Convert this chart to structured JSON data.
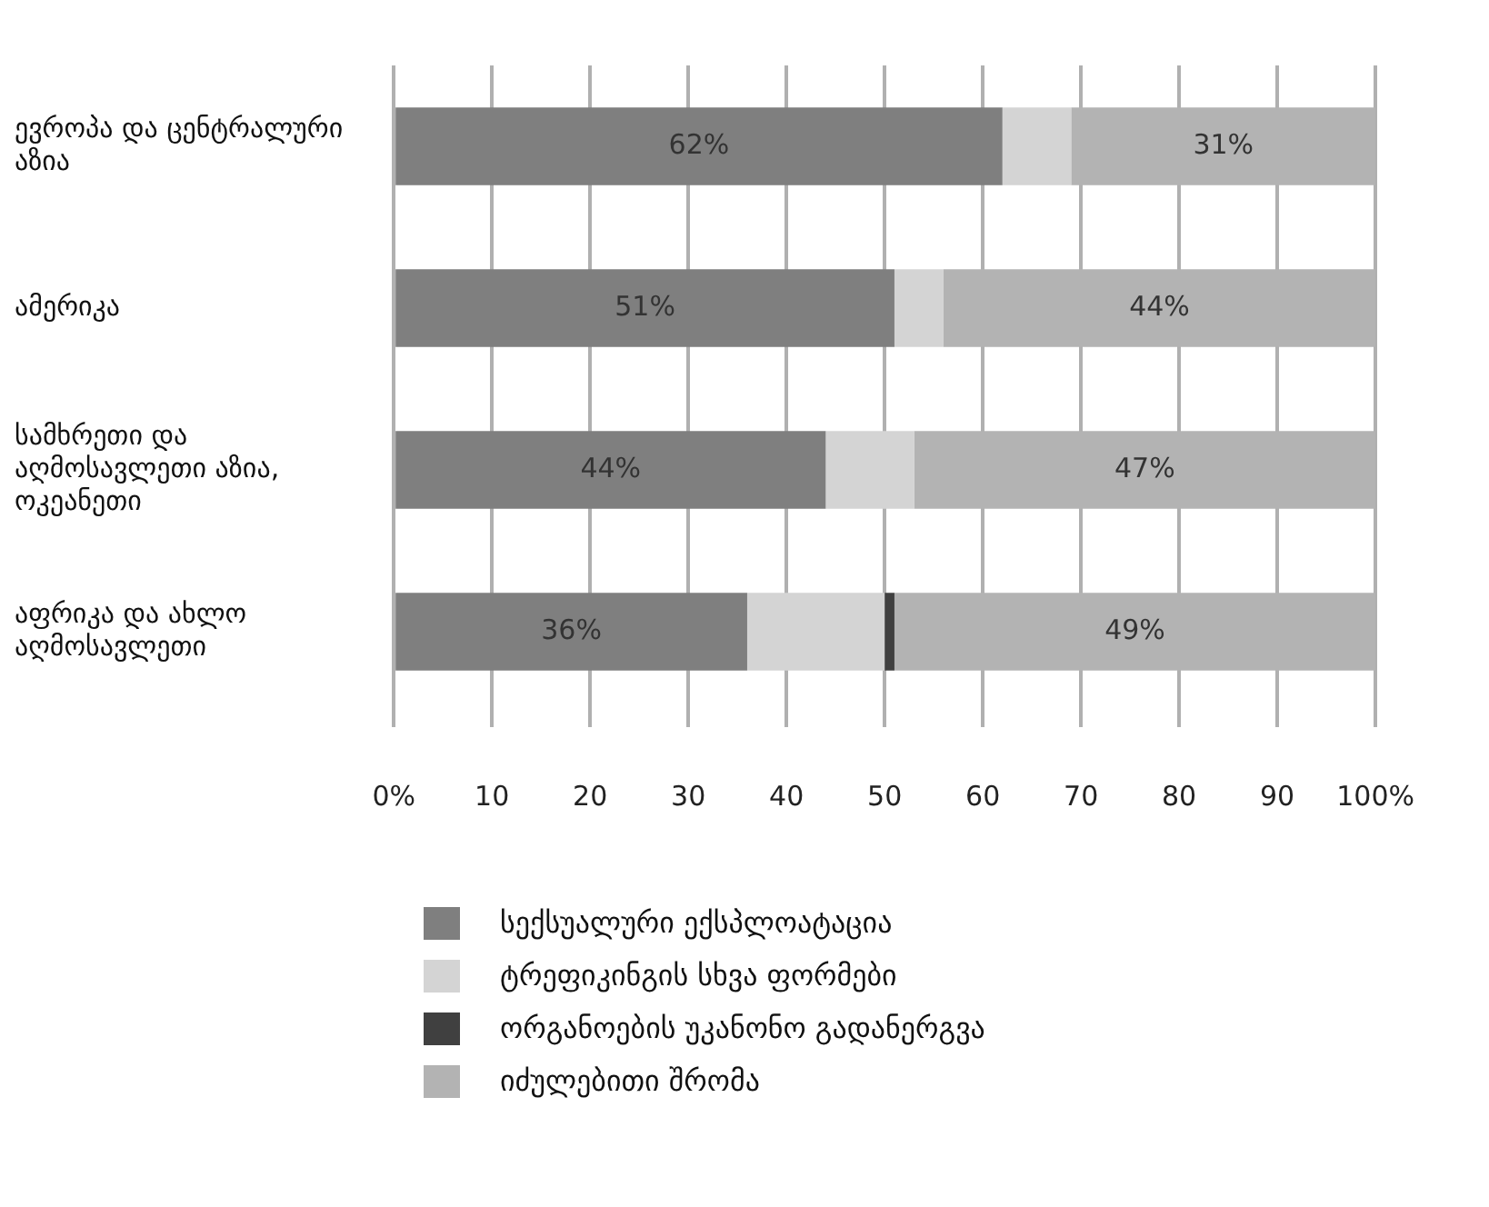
{
  "chart_data": {
    "type": "bar",
    "orientation": "horizontal",
    "stacked": true,
    "categories": [
      "ევროპა და ცენტრალური აზია",
      "ამერიკა",
      "სამხრეთი და აღმოსავლეთი აზია, ოკეანეთი",
      "აფრიკა და ახლო აღმოსავლეთი"
    ],
    "series": [
      {
        "name": "სექსუალური ექსპლოატაცია",
        "color": "#7f7f7f",
        "values": [
          62,
          51,
          44,
          36
        ],
        "value_labels": [
          "62%",
          "51%",
          "44%",
          "36%"
        ]
      },
      {
        "name": "ტრეფიკინგის სხვა ფორმები",
        "color": "#d4d4d4",
        "values": [
          7,
          5,
          9,
          14
        ]
      },
      {
        "name": "ორგანოების უკანონო გადანერგვა",
        "color": "#404040",
        "values": [
          0,
          0,
          0,
          1
        ]
      },
      {
        "name": "იძულებითი შრომა",
        "color": "#b3b3b3",
        "values": [
          31,
          44,
          47,
          49
        ],
        "value_labels": [
          "31%",
          "44%",
          "47%",
          "49%"
        ]
      }
    ],
    "xlim": [
      0,
      100
    ],
    "xticks": [
      {
        "value": 0,
        "label": "0%"
      },
      10,
      20,
      30,
      40,
      50,
      60,
      70,
      80,
      90,
      {
        "value": 100,
        "label": "100%"
      }
    ],
    "grid": "x",
    "legend": "bottom"
  }
}
